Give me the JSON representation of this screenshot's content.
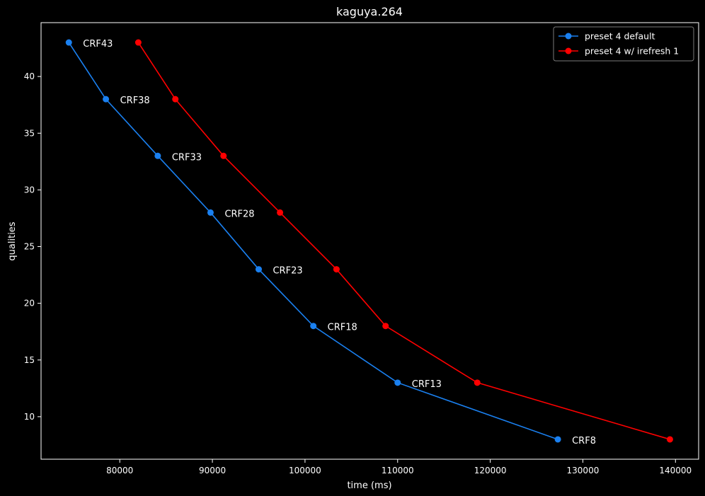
{
  "chart_data": {
    "type": "line",
    "title": "kaguya.264",
    "xlabel": "time (ms)",
    "ylabel": "qualities",
    "xlim": [
      71500,
      142500
    ],
    "ylim": [
      6.25,
      44.75
    ],
    "xticks": [
      80000,
      90000,
      100000,
      110000,
      120000,
      130000,
      140000
    ],
    "yticks": [
      10,
      15,
      20,
      25,
      30,
      35,
      40
    ],
    "grid": false,
    "legend_position": "top-right",
    "background": "#000000",
    "series": [
      {
        "name": "preset 4 default",
        "color": "#1a80f0",
        "points": [
          {
            "x": 74500,
            "y": 43
          },
          {
            "x": 78500,
            "y": 38
          },
          {
            "x": 84100,
            "y": 33
          },
          {
            "x": 89800,
            "y": 28
          },
          {
            "x": 95000,
            "y": 23
          },
          {
            "x": 100900,
            "y": 18
          },
          {
            "x": 110000,
            "y": 13
          },
          {
            "x": 127300,
            "y": 8
          }
        ]
      },
      {
        "name": "preset 4 w/ irefresh 1",
        "color": "#ff0000",
        "points": [
          {
            "x": 82000,
            "y": 43
          },
          {
            "x": 86000,
            "y": 38
          },
          {
            "x": 91200,
            "y": 33
          },
          {
            "x": 97300,
            "y": 28
          },
          {
            "x": 103400,
            "y": 23
          },
          {
            "x": 108700,
            "y": 18
          },
          {
            "x": 118600,
            "y": 13
          },
          {
            "x": 139400,
            "y": 8
          }
        ]
      }
    ],
    "annotations": [
      {
        "text": "CRF43",
        "x": 74500,
        "y": 43
      },
      {
        "text": "CRF38",
        "x": 78500,
        "y": 38
      },
      {
        "text": "CRF33",
        "x": 84100,
        "y": 33
      },
      {
        "text": "CRF28",
        "x": 89800,
        "y": 28
      },
      {
        "text": "CRF23",
        "x": 95000,
        "y": 23
      },
      {
        "text": "CRF18",
        "x": 100900,
        "y": 18
      },
      {
        "text": "CRF13",
        "x": 110000,
        "y": 13
      },
      {
        "text": "CRF8",
        "x": 127300,
        "y": 8
      }
    ]
  }
}
